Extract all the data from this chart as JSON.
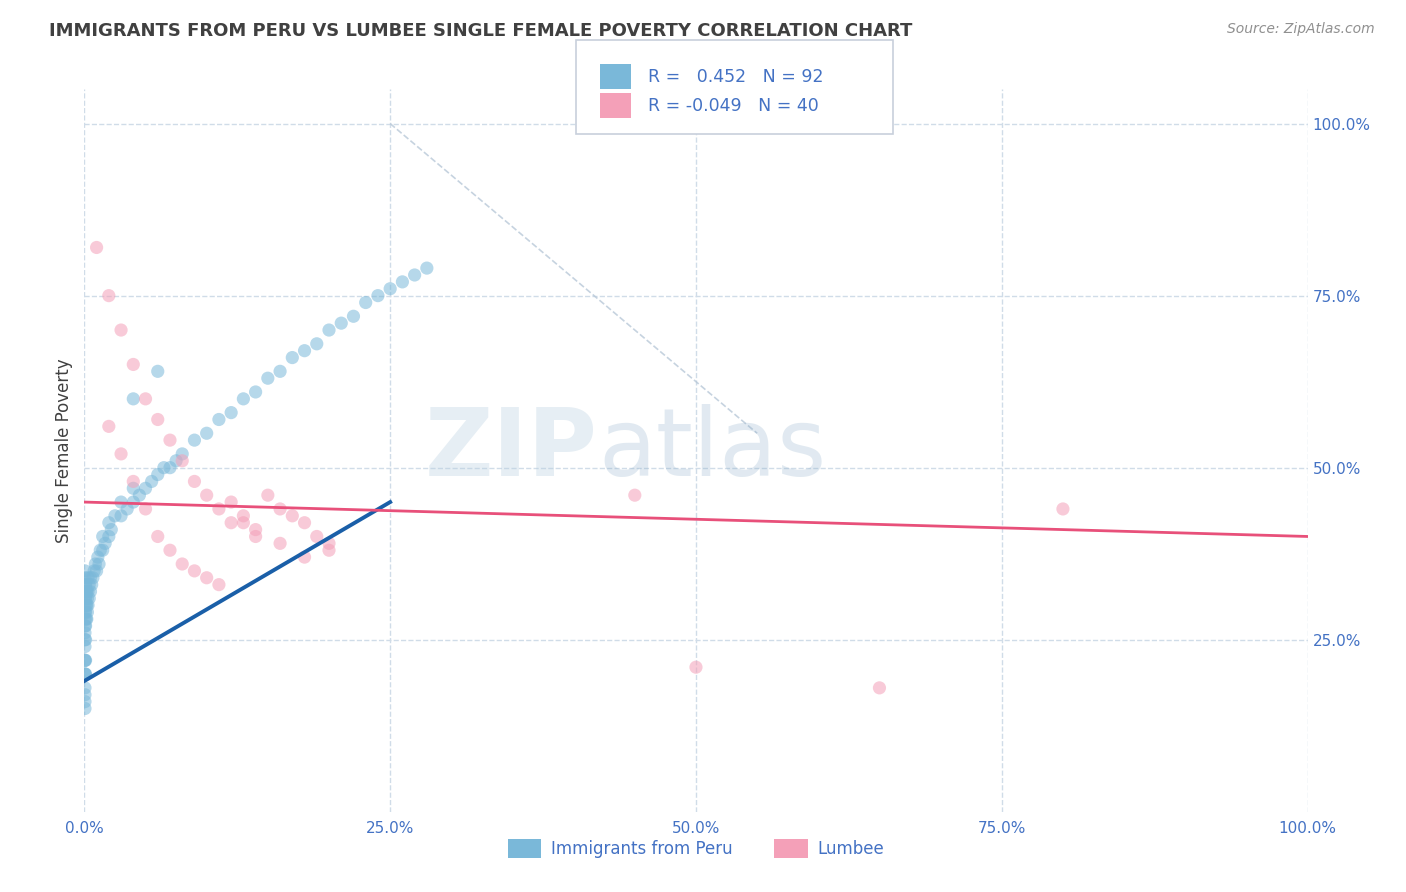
{
  "title": "IMMIGRANTS FROM PERU VS LUMBEE SINGLE FEMALE POVERTY CORRELATION CHART",
  "source": "Source: ZipAtlas.com",
  "ylabel": "Single Female Poverty",
  "x_tick_labels": [
    "0.0%",
    "25.0%",
    "50.0%",
    "75.0%",
    "100.0%"
  ],
  "x_tick_positions": [
    0,
    25,
    50,
    75,
    100
  ],
  "y_tick_labels": [
    "25.0%",
    "50.0%",
    "75.0%",
    "100.0%"
  ],
  "y_tick_positions": [
    25,
    50,
    75,
    100
  ],
  "xlim": [
    0,
    100
  ],
  "ylim": [
    0,
    105
  ],
  "r_values": [
    0.452,
    -0.049
  ],
  "n_values": [
    92,
    40
  ],
  "blue_scatter_x": [
    0.05,
    0.05,
    0.05,
    0.05,
    0.05,
    0.05,
    0.05,
    0.05,
    0.05,
    0.05,
    0.05,
    0.05,
    0.05,
    0.05,
    0.05,
    0.05,
    0.05,
    0.05,
    0.05,
    0.05,
    0.1,
    0.1,
    0.1,
    0.1,
    0.1,
    0.1,
    0.1,
    0.15,
    0.15,
    0.15,
    0.2,
    0.2,
    0.2,
    0.25,
    0.25,
    0.3,
    0.3,
    0.3,
    0.4,
    0.4,
    0.5,
    0.5,
    0.6,
    0.7,
    0.8,
    0.9,
    1.0,
    1.1,
    1.2,
    1.3,
    1.5,
    1.5,
    1.7,
    2.0,
    2.0,
    2.2,
    2.5,
    3.0,
    3.0,
    3.5,
    4.0,
    4.0,
    4.5,
    5.0,
    5.5,
    6.0,
    6.5,
    7.0,
    7.5,
    8.0,
    9.0,
    10.0,
    11.0,
    12.0,
    13.0,
    14.0,
    15.0,
    16.0,
    17.0,
    18.0,
    19.0,
    20.0,
    21.0,
    22.0,
    23.0,
    24.0,
    25.0,
    26.0,
    27.0,
    28.0,
    4.0,
    6.0
  ],
  "blue_scatter_y": [
    18,
    20,
    22,
    24,
    25,
    26,
    27,
    28,
    29,
    30,
    31,
    32,
    33,
    34,
    35,
    20,
    22,
    15,
    16,
    17,
    25,
    27,
    29,
    31,
    33,
    20,
    22,
    28,
    30,
    32,
    28,
    30,
    32,
    29,
    31,
    30,
    32,
    34,
    31,
    33,
    32,
    34,
    33,
    34,
    35,
    36,
    35,
    37,
    36,
    38,
    38,
    40,
    39,
    40,
    42,
    41,
    43,
    43,
    45,
    44,
    45,
    47,
    46,
    47,
    48,
    49,
    50,
    50,
    51,
    52,
    54,
    55,
    57,
    58,
    60,
    61,
    63,
    64,
    66,
    67,
    68,
    70,
    71,
    72,
    74,
    75,
    76,
    77,
    78,
    79,
    60,
    64
  ],
  "pink_scatter_x": [
    1.0,
    2.0,
    3.0,
    4.0,
    5.0,
    6.0,
    7.0,
    8.0,
    9.0,
    10.0,
    11.0,
    12.0,
    13.0,
    14.0,
    15.0,
    16.0,
    17.0,
    18.0,
    19.0,
    20.0,
    2.0,
    3.0,
    4.0,
    5.0,
    6.0,
    7.0,
    8.0,
    9.0,
    10.0,
    11.0,
    12.0,
    13.0,
    14.0,
    16.0,
    18.0,
    20.0,
    45.0,
    50.0,
    65.0,
    80.0
  ],
  "pink_scatter_y": [
    82,
    75,
    70,
    65,
    60,
    57,
    54,
    51,
    48,
    46,
    44,
    42,
    42,
    40,
    46,
    44,
    43,
    42,
    40,
    39,
    56,
    52,
    48,
    44,
    40,
    38,
    36,
    35,
    34,
    33,
    45,
    43,
    41,
    39,
    37,
    38,
    46,
    21,
    18,
    44
  ],
  "blue_line_x": [
    0,
    25
  ],
  "blue_line_y": [
    19,
    45
  ],
  "pink_line_x": [
    0,
    100
  ],
  "pink_line_y": [
    45,
    40
  ],
  "diag_line_x": [
    25,
    55
  ],
  "diag_line_y": [
    100,
    55
  ],
  "watermark_zip": "ZIP",
  "watermark_atlas": "atlas",
  "background_color": "#ffffff",
  "scatter_alpha": 0.55,
  "scatter_size": 90,
  "blue_color": "#7ab8d9",
  "pink_color": "#f4a0b8",
  "blue_line_color": "#1a5fa8",
  "pink_line_color": "#e8507a",
  "diag_line_color": "#b8c8d8",
  "grid_color": "#d0dce8",
  "legend_text_color": "#4472c4",
  "title_color": "#404040",
  "source_color": "#909090"
}
